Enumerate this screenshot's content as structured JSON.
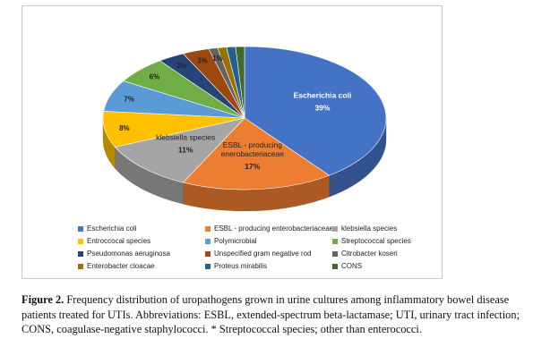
{
  "chart_data": {
    "type": "pie",
    "series": [
      {
        "name": "Escherichia coli",
        "label": "Escherichia coli",
        "value": 39,
        "value_label": "39%",
        "color": "#4472c4"
      },
      {
        "name": "ESBL -  producing enterobacteriaceae",
        "label": "ESBL - producing enerobacteriaceae",
        "value": 17,
        "value_label": "17%",
        "color": "#ed7d31"
      },
      {
        "name": "klebsiella species",
        "label": "klebsiella species",
        "value": 11,
        "value_label": "11%",
        "color": "#a5a5a5"
      },
      {
        "name": "Entroccocal species",
        "label": "",
        "value": 8,
        "value_label": "8%",
        "color": "#ffc000"
      },
      {
        "name": "Polymicrobial",
        "label": "",
        "value": 7,
        "value_label": "7%",
        "color": "#5b9bd5"
      },
      {
        "name": "Streptococcal species",
        "label": "",
        "value": 6,
        "value_label": "6%",
        "color": "#70ad47"
      },
      {
        "name": "Pseudomonas aeruginosa",
        "label": "",
        "value": 3,
        "value_label": "3%",
        "color": "#264478"
      },
      {
        "name": "Unspecified gram negative rod",
        "label": "",
        "value": 3,
        "value_label": "3%",
        "color": "#9e480e"
      },
      {
        "name": "Citrobacter koseri",
        "label": "",
        "value": 1,
        "value_label": "1%",
        "color": "#636363"
      },
      {
        "name": "Enterobacter cloacae",
        "label": "",
        "value": 1,
        "value_label": "",
        "color": "#997300"
      },
      {
        "name": "Proteus mirabilis",
        "label": "",
        "value": 1,
        "value_label": "",
        "color": "#255e91"
      },
      {
        "name": "CONS",
        "label": "",
        "value": 1,
        "value_label": "",
        "color": "#43682b"
      }
    ],
    "legend_placement": "bottom"
  },
  "caption": {
    "label": "Figure 2.",
    "text": "Frequency distribution of uropathogens grown in urine cultures among inflammatory bowel disease patients treated for UTIs. Abbreviations: ESBL, extended-spectrum beta-lactamase; UTI, urinary tract infection; CONS, coagulase-negative staphylococci. * Streptococcal species; other than enterococci."
  }
}
